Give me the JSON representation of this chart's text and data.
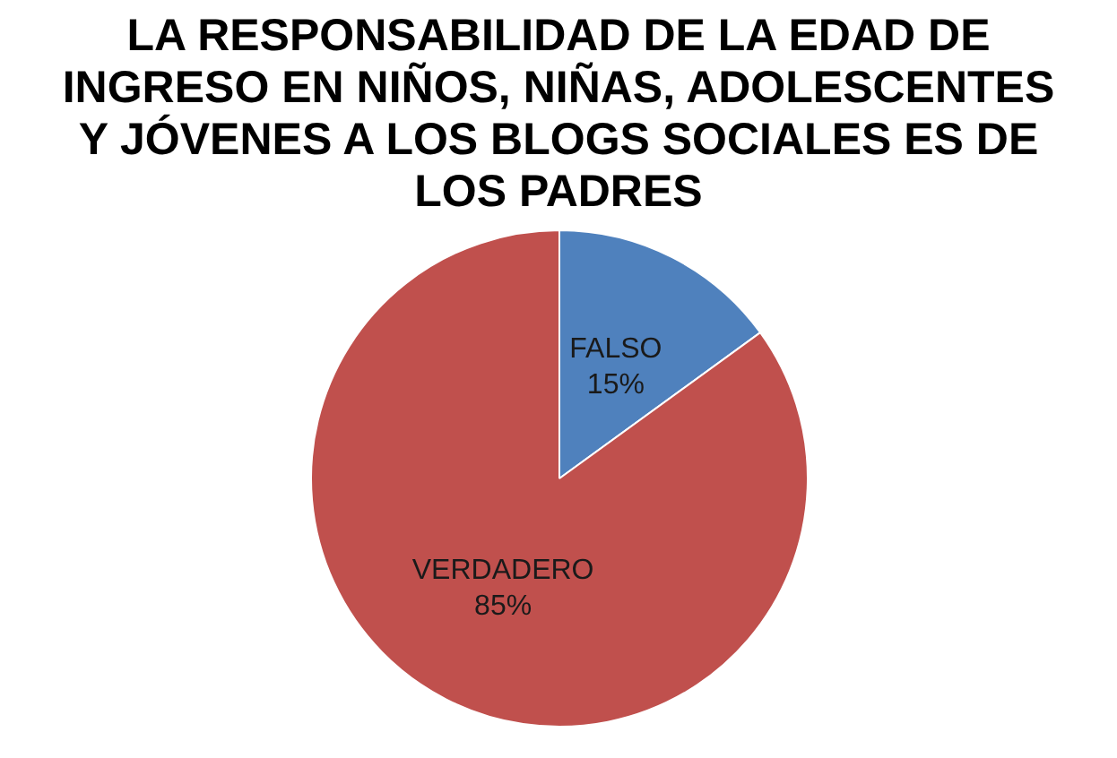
{
  "chart_data": {
    "type": "pie",
    "title": "LA RESPONSABILIDAD  DE LA EDAD DE INGRESO EN NIÑOS, NIÑAS, ADOLESCENTES Y JÓVENES A LOS BLOGS SOCIALES ES DE LOS PADRES",
    "categories": [
      "FALSO",
      "VERDADERO"
    ],
    "values": [
      15,
      85
    ],
    "colors": [
      "#4f81bd",
      "#c0504d"
    ],
    "value_labels": [
      "15%",
      "85%"
    ],
    "legend": false
  }
}
